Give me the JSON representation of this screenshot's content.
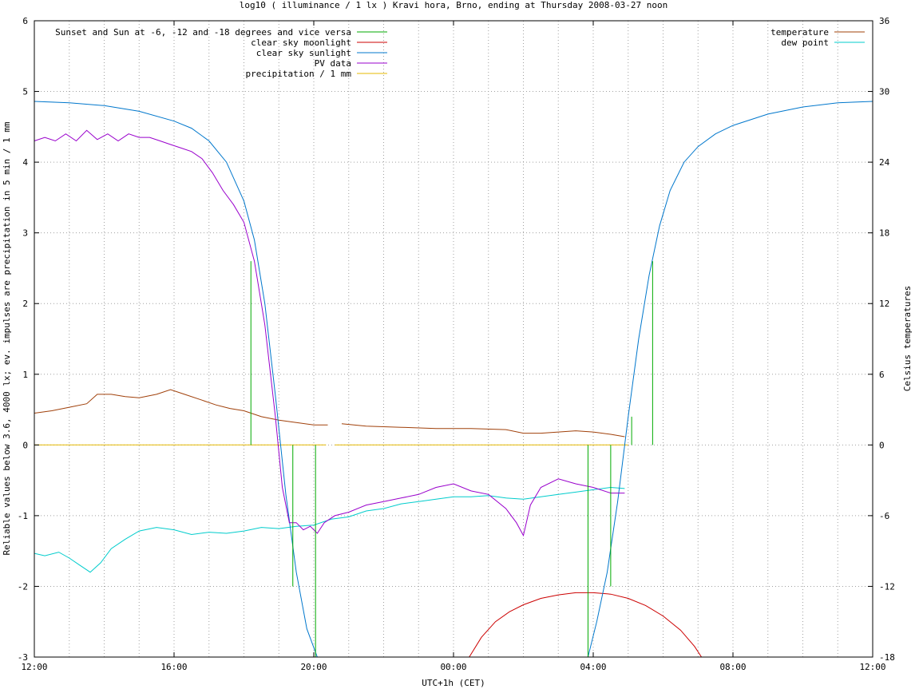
{
  "chart_data": {
    "type": "line",
    "title": "log10 ( illuminance / 1 lx ) Kravi hora, Brno, ending at Thursday 2008-03-27 noon",
    "xlabel": "UTC+1h (CET)",
    "ylabel": "Reliable values below 3.6, 4000 lx; ev. impulses are precipitation in 5 min / 1 mm",
    "y2label": "Celsius temperatures",
    "xlim": [
      0,
      24
    ],
    "ylim": [
      -3,
      6
    ],
    "y2lim": [
      -18,
      36
    ],
    "xticks": [
      {
        "v": 0,
        "label": "12:00"
      },
      {
        "v": 4,
        "label": "16:00"
      },
      {
        "v": 8,
        "label": "20:00"
      },
      {
        "v": 12,
        "label": "00:00"
      },
      {
        "v": 16,
        "label": "04:00"
      },
      {
        "v": 20,
        "label": "08:00"
      },
      {
        "v": 24,
        "label": "12:00"
      }
    ],
    "yticks": [
      {
        "v": -3,
        "label": "-3"
      },
      {
        "v": -2,
        "label": "-2"
      },
      {
        "v": -1,
        "label": "-1"
      },
      {
        "v": 0,
        "label": "0"
      },
      {
        "v": 1,
        "label": "1"
      },
      {
        "v": 2,
        "label": "2"
      },
      {
        "v": 3,
        "label": "3"
      },
      {
        "v": 4,
        "label": "4"
      },
      {
        "v": 5,
        "label": "5"
      },
      {
        "v": 6,
        "label": "6"
      }
    ],
    "y2ticks": [
      {
        "v": -18,
        "label": "-18"
      },
      {
        "v": -12,
        "label": "-12"
      },
      {
        "v": -6,
        "label": "-6"
      },
      {
        "v": 0,
        "label": "0"
      },
      {
        "v": 6,
        "label": "6"
      },
      {
        "v": 12,
        "label": "12"
      },
      {
        "v": 18,
        "label": "18"
      },
      {
        "v": 24,
        "label": "24"
      },
      {
        "v": 30,
        "label": "30"
      },
      {
        "v": 36,
        "label": "36"
      }
    ],
    "grid": true,
    "legend_left": [
      {
        "name": "Sunset and Sun at -6, -12 and -18 degrees and vice versa",
        "color": "#00aa00"
      },
      {
        "name": "clear sky moonlight",
        "color": "#cc0000"
      },
      {
        "name": "clear sky sunlight",
        "color": "#0077cc"
      },
      {
        "name": "PV data",
        "color": "#9900cc"
      },
      {
        "name": "precipitation / 1 mm",
        "color": "#e6b800"
      }
    ],
    "legend_right": [
      {
        "name": "temperature",
        "color": "#a0400a"
      },
      {
        "name": "dew point",
        "color": "#00cccc"
      }
    ],
    "sun_events": [
      {
        "x": 6.2,
        "y": 2.6
      },
      {
        "x": 6.8,
        "y": 0
      },
      {
        "x": 7.4,
        "y": -2.0
      },
      {
        "x": 8.05,
        "y": -3.0
      },
      {
        "x": 15.85,
        "y": -3.0
      },
      {
        "x": 16.5,
        "y": -2.0
      },
      {
        "x": 17.1,
        "y": 0.4
      },
      {
        "x": 17.7,
        "y": 2.6
      }
    ],
    "sunlight": [
      [
        0,
        4.86
      ],
      [
        1,
        4.84
      ],
      [
        2,
        4.8
      ],
      [
        3,
        4.72
      ],
      [
        4,
        4.58
      ],
      [
        4.5,
        4.48
      ],
      [
        5,
        4.3
      ],
      [
        5.5,
        4.0
      ],
      [
        6,
        3.45
      ],
      [
        6.3,
        2.9
      ],
      [
        6.6,
        2.0
      ],
      [
        6.9,
        0.7
      ],
      [
        7.2,
        -0.7
      ],
      [
        7.5,
        -1.8
      ],
      [
        7.8,
        -2.6
      ],
      [
        8.1,
        -3.0
      ],
      [
        15.85,
        -3.0
      ],
      [
        16.1,
        -2.5
      ],
      [
        16.4,
        -1.8
      ],
      [
        16.7,
        -0.8
      ],
      [
        17.0,
        0.4
      ],
      [
        17.3,
        1.5
      ],
      [
        17.6,
        2.4
      ],
      [
        17.9,
        3.1
      ],
      [
        18.2,
        3.6
      ],
      [
        18.6,
        4.0
      ],
      [
        19,
        4.22
      ],
      [
        19.5,
        4.4
      ],
      [
        20,
        4.52
      ],
      [
        21,
        4.68
      ],
      [
        22,
        4.78
      ],
      [
        23,
        4.84
      ],
      [
        24,
        4.86
      ]
    ],
    "moonlight": [
      [
        12.45,
        -3.0
      ],
      [
        12.8,
        -2.72
      ],
      [
        13.2,
        -2.5
      ],
      [
        13.6,
        -2.36
      ],
      [
        14,
        -2.26
      ],
      [
        14.5,
        -2.17
      ],
      [
        15,
        -2.12
      ],
      [
        15.5,
        -2.09
      ],
      [
        16,
        -2.09
      ],
      [
        16.5,
        -2.11
      ],
      [
        17,
        -2.17
      ],
      [
        17.5,
        -2.27
      ],
      [
        18,
        -2.42
      ],
      [
        18.5,
        -2.62
      ],
      [
        18.9,
        -2.85
      ],
      [
        19.1,
        -3.0
      ]
    ],
    "pv_data": [
      [
        0,
        4.3
      ],
      [
        0.3,
        4.35
      ],
      [
        0.6,
        4.3
      ],
      [
        0.9,
        4.4
      ],
      [
        1.2,
        4.3
      ],
      [
        1.5,
        4.45
      ],
      [
        1.8,
        4.32
      ],
      [
        2.1,
        4.4
      ],
      [
        2.4,
        4.3
      ],
      [
        2.7,
        4.4
      ],
      [
        3.0,
        4.35
      ],
      [
        3.3,
        4.35
      ],
      [
        3.6,
        4.3
      ],
      [
        3.9,
        4.25
      ],
      [
        4.2,
        4.2
      ],
      [
        4.5,
        4.15
      ],
      [
        4.8,
        4.05
      ],
      [
        5.1,
        3.85
      ],
      [
        5.4,
        3.6
      ],
      [
        5.7,
        3.4
      ],
      [
        6.0,
        3.15
      ],
      [
        6.3,
        2.6
      ],
      [
        6.6,
        1.7
      ],
      [
        6.9,
        0.4
      ],
      [
        7.1,
        -0.6
      ],
      [
        7.3,
        -1.1
      ],
      [
        7.5,
        -1.1
      ],
      [
        7.7,
        -1.2
      ],
      [
        7.9,
        -1.15
      ],
      [
        8.1,
        -1.25
      ],
      [
        8.3,
        -1.1
      ],
      [
        8.6,
        -1.0
      ],
      [
        9.0,
        -0.95
      ],
      [
        9.5,
        -0.85
      ],
      [
        10.0,
        -0.8
      ],
      [
        10.5,
        -0.75
      ],
      [
        11.0,
        -0.7
      ],
      [
        11.5,
        -0.6
      ],
      [
        12.0,
        -0.55
      ],
      [
        12.5,
        -0.65
      ],
      [
        13.0,
        -0.7
      ],
      [
        13.5,
        -0.9
      ],
      [
        13.8,
        -1.1
      ],
      [
        14.0,
        -1.28
      ],
      [
        14.2,
        -0.85
      ],
      [
        14.5,
        -0.6
      ],
      [
        15.0,
        -0.48
      ],
      [
        15.5,
        -0.55
      ],
      [
        16.0,
        -0.6
      ],
      [
        16.5,
        -0.68
      ],
      [
        16.9,
        -0.68
      ]
    ],
    "temperature": [
      [
        0,
        2.7
      ],
      [
        0.5,
        2.9
      ],
      [
        1,
        3.2
      ],
      [
        1.5,
        3.5
      ],
      [
        1.8,
        4.3
      ],
      [
        2.2,
        4.3
      ],
      [
        2.6,
        4.1
      ],
      [
        3.0,
        4.0
      ],
      [
        3.5,
        4.3
      ],
      [
        3.9,
        4.7
      ],
      [
        4.3,
        4.3
      ],
      [
        4.8,
        3.8
      ],
      [
        5.2,
        3.4
      ],
      [
        5.6,
        3.1
      ],
      [
        6.0,
        2.9
      ],
      [
        6.5,
        2.4
      ],
      [
        7.0,
        2.1
      ],
      [
        7.5,
        1.9
      ],
      [
        8.0,
        1.7
      ],
      [
        8.4,
        1.7
      ],
      [
        8.6,
        null
      ],
      [
        8.8,
        1.8
      ],
      [
        9.5,
        1.6
      ],
      [
        10.5,
        1.5
      ],
      [
        11.5,
        1.4
      ],
      [
        12.5,
        1.4
      ],
      [
        13.5,
        1.3
      ],
      [
        14.0,
        1.0
      ],
      [
        14.5,
        1.0
      ],
      [
        15.0,
        1.1
      ],
      [
        15.5,
        1.2
      ],
      [
        16.0,
        1.1
      ],
      [
        16.5,
        0.9
      ],
      [
        16.9,
        0.7
      ]
    ],
    "dew_point": [
      [
        0,
        -9.2
      ],
      [
        0.3,
        -9.4
      ],
      [
        0.7,
        -9.1
      ],
      [
        1.0,
        -9.6
      ],
      [
        1.3,
        -10.2
      ],
      [
        1.6,
        -10.8
      ],
      [
        1.9,
        -10.0
      ],
      [
        2.2,
        -8.8
      ],
      [
        2.6,
        -8.0
      ],
      [
        3.0,
        -7.3
      ],
      [
        3.5,
        -7.0
      ],
      [
        4.0,
        -7.2
      ],
      [
        4.5,
        -7.6
      ],
      [
        5.0,
        -7.4
      ],
      [
        5.5,
        -7.5
      ],
      [
        6.0,
        -7.3
      ],
      [
        6.5,
        -7.0
      ],
      [
        7.0,
        -7.1
      ],
      [
        7.5,
        -6.9
      ],
      [
        8.0,
        -6.8
      ],
      [
        8.5,
        -6.3
      ],
      [
        9.0,
        -6.1
      ],
      [
        9.5,
        -5.6
      ],
      [
        10.0,
        -5.4
      ],
      [
        10.5,
        -5.0
      ],
      [
        11.0,
        -4.8
      ],
      [
        11.5,
        -4.6
      ],
      [
        12.0,
        -4.4
      ],
      [
        12.5,
        -4.4
      ],
      [
        13.0,
        -4.3
      ],
      [
        13.5,
        -4.5
      ],
      [
        14.0,
        -4.6
      ],
      [
        14.5,
        -4.4
      ],
      [
        15.0,
        -4.2
      ],
      [
        15.5,
        -4.0
      ],
      [
        16.0,
        -3.8
      ],
      [
        16.5,
        -3.6
      ],
      [
        16.9,
        -3.7
      ]
    ],
    "precipitation": [
      [
        0,
        0
      ],
      [
        8.35,
        0
      ],
      [
        8.35,
        null
      ],
      [
        8.6,
        0
      ],
      [
        17.0,
        0
      ]
    ]
  }
}
